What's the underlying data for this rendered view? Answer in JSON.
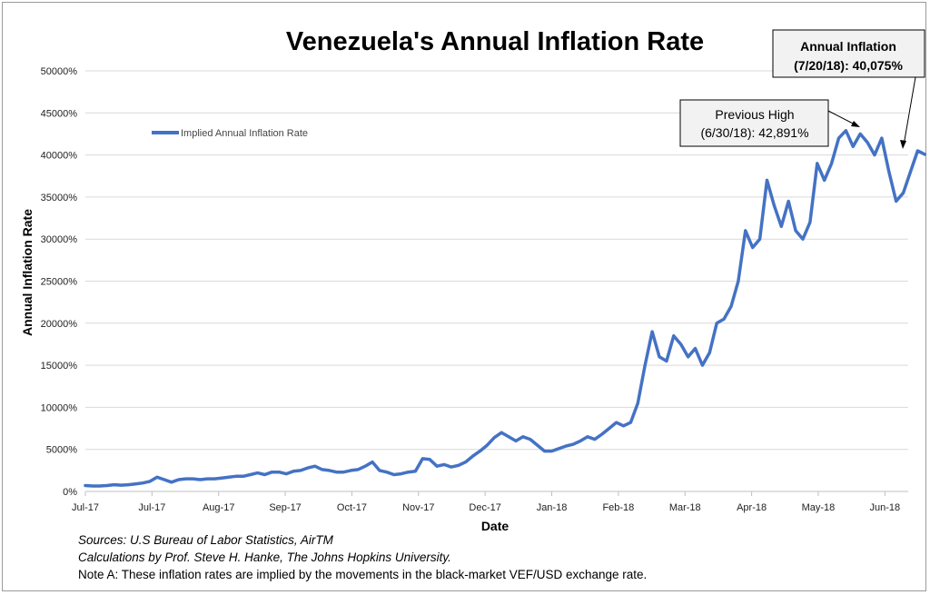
{
  "chart_data": {
    "type": "line",
    "title": "Venezuela's Annual Inflation Rate",
    "xlabel": "Date",
    "ylabel": "Annual Inflation Rate",
    "ylim": [
      0,
      500000
    ],
    "yticks": [
      "0%",
      "5000%",
      "10000%",
      "15000%",
      "20000%",
      "25000%",
      "30000%",
      "35000%",
      "40000%",
      "45000%",
      "50000%"
    ],
    "xticks": [
      "Jul-17",
      "Jul-17",
      "Aug-17",
      "Sep-17",
      "Oct-17",
      "Nov-17",
      "Dec-17",
      "Jan-18",
      "Feb-18",
      "Mar-18",
      "Apr-18",
      "May-18",
      "Jun-18"
    ],
    "grid": true,
    "legend_position": "top-left",
    "series": [
      {
        "name": "Implied Annual Inflation Rate",
        "color": "#4472C4",
        "x_start_tick": 0,
        "x_end_tick": 12.6,
        "values": [
          700,
          650,
          650,
          700,
          800,
          750,
          800,
          900,
          1000,
          1200,
          1700,
          1400,
          1100,
          1400,
          1500,
          1500,
          1400,
          1500,
          1500,
          1600,
          1700,
          1800,
          1800,
          2000,
          2200,
          2000,
          2300,
          2300,
          2100,
          2400,
          2500,
          2800,
          3000,
          2600,
          2500,
          2300,
          2300,
          2500,
          2600,
          3000,
          3500,
          2500,
          2300,
          2000,
          2100,
          2300,
          2400,
          3900,
          3800,
          3000,
          3200,
          2900,
          3100,
          3500,
          4200,
          4800,
          5500,
          6400,
          7000,
          6500,
          6000,
          6500,
          6200,
          5500,
          4800,
          4800,
          5100,
          5400,
          5600,
          6000,
          6500,
          6200,
          6800,
          7500,
          8200,
          7800,
          8200,
          10500,
          15000,
          19000,
          16000,
          15500,
          18500,
          17500,
          16000,
          17000,
          15000,
          16500,
          20000,
          20500,
          22000,
          25000,
          31000,
          29000,
          30000,
          37000,
          34000,
          31500,
          34500,
          31000,
          30000,
          32000,
          39000,
          37000,
          39000,
          42000,
          42891,
          41000,
          42500,
          41500,
          40000,
          42000,
          38000,
          34500,
          35500,
          38000,
          40500,
          40075
        ]
      }
    ],
    "annotations": [
      {
        "line1": "Previous High",
        "line2": "(6/30/18): 42,891%"
      },
      {
        "line1": "Annual Inflation",
        "line2": "(7/20/18): 40,075%"
      }
    ]
  },
  "notes": {
    "line1": "Sources: U.S Bureau of Labor Statistics, AirTM",
    "line2": "Calculations by Prof. Steve H. Hanke, The Johns Hopkins University.",
    "line3": "Note A: These inflation rates are implied by the movements in the black-market VEF/USD exchange rate."
  }
}
